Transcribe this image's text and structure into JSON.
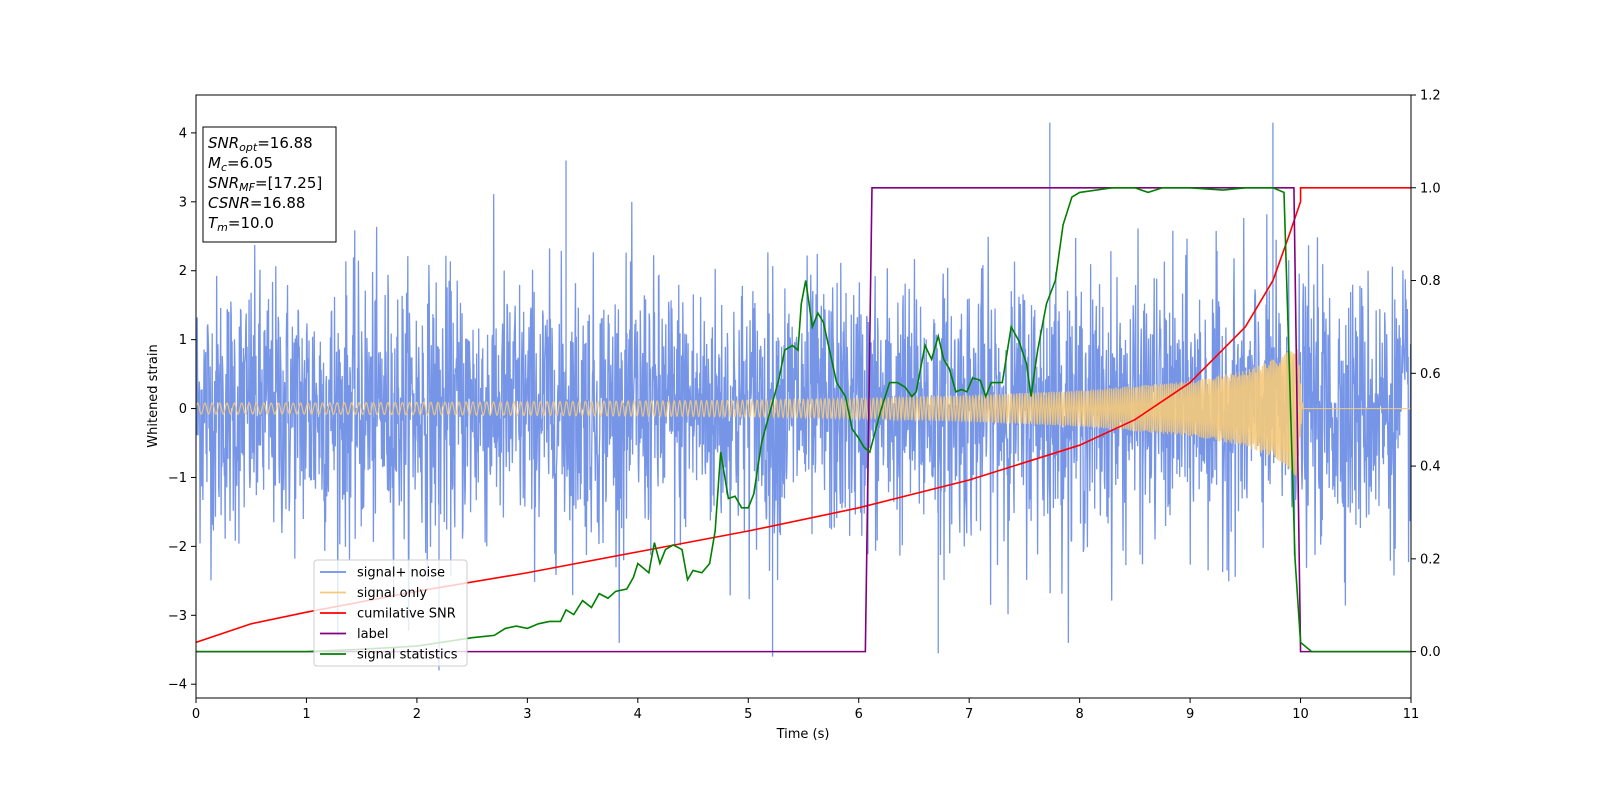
{
  "chart_data": {
    "type": "line",
    "xlabel": "Time (s)",
    "ylabel": "Whitened strain",
    "xlim": [
      0,
      11
    ],
    "ylim_left": [
      -4.2,
      4.55
    ],
    "ylim_right": [
      -0.1,
      1.2
    ],
    "x_ticks": [
      0,
      1,
      2,
      3,
      4,
      5,
      6,
      7,
      8,
      9,
      10,
      11
    ],
    "y_left_ticks": [
      -4,
      -3,
      -2,
      -1,
      0,
      1,
      2,
      3,
      4
    ],
    "y_right_ticks": [
      0.0,
      0.2,
      0.4,
      0.6,
      0.8,
      1.0,
      1.2
    ],
    "legend_position": "lower-left",
    "info_box": {
      "position": "upper-left",
      "lines": [
        {
          "base": "SNR",
          "sub": "opt",
          "rest": "=16.88"
        },
        {
          "base": "M",
          "sub": "c",
          "rest": "=6.05"
        },
        {
          "base": "SNR",
          "sub": "MF",
          "rest": "=[17.25]"
        },
        {
          "base": "CSNR",
          "sub": "",
          "rest": "=16.88"
        },
        {
          "base": "T",
          "sub": "m",
          "rest": "=10.0"
        }
      ]
    },
    "series": [
      {
        "name": "signal+ noise",
        "axis": "left",
        "color": "#6f8fe6",
        "description_points": {
          "noise_sigma": 1.0,
          "notable_peaks": [
            [
              2.2,
              -3.8
            ],
            [
              3.35,
              3.6
            ],
            [
              5.22,
              -3.6
            ],
            [
              7.73,
              4.15
            ],
            [
              9.75,
              4.15
            ],
            [
              6.72,
              -3.55
            ]
          ]
        }
      },
      {
        "name": "signal only",
        "axis": "left",
        "color": "#f5c97a",
        "envelope": {
          "t": [
            0,
            1,
            2,
            3,
            4,
            5,
            6,
            7,
            8,
            9,
            9.5,
            9.8,
            9.97,
            10.02,
            11
          ],
          "amp": [
            0.08,
            0.08,
            0.09,
            0.1,
            0.11,
            0.12,
            0.15,
            0.19,
            0.26,
            0.4,
            0.55,
            0.75,
            1.0,
            0,
            0
          ]
        }
      },
      {
        "name": "cumilative SNR",
        "axis": "right",
        "color": "#ff0000",
        "points": [
          [
            0,
            0.02
          ],
          [
            0.5,
            0.06
          ],
          [
            1,
            0.085
          ],
          [
            2,
            0.13
          ],
          [
            3,
            0.17
          ],
          [
            4,
            0.215
          ],
          [
            5,
            0.26
          ],
          [
            6,
            0.31
          ],
          [
            7,
            0.37
          ],
          [
            8,
            0.445
          ],
          [
            8.5,
            0.5
          ],
          [
            9,
            0.58
          ],
          [
            9.5,
            0.7
          ],
          [
            9.75,
            0.8
          ],
          [
            9.9,
            0.9
          ],
          [
            10.0,
            0.97
          ],
          [
            10.0,
            1.0
          ],
          [
            11,
            1.0
          ]
        ]
      },
      {
        "name": "label",
        "axis": "right",
        "color": "#800080",
        "points": [
          [
            0,
            0
          ],
          [
            6.06,
            0
          ],
          [
            6.12,
            1.0
          ],
          [
            9.94,
            1.0
          ],
          [
            10.0,
            0
          ],
          [
            11,
            0
          ]
        ]
      },
      {
        "name": "signal statistics",
        "axis": "right",
        "color": "#008000",
        "points": [
          [
            0,
            0.0
          ],
          [
            1,
            0.0
          ],
          [
            1.5,
            0.005
          ],
          [
            2.0,
            0.012
          ],
          [
            2.5,
            0.03
          ],
          [
            2.7,
            0.035
          ],
          [
            2.8,
            0.05
          ],
          [
            2.9,
            0.055
          ],
          [
            3.0,
            0.05
          ],
          [
            3.1,
            0.06
          ],
          [
            3.2,
            0.065
          ],
          [
            3.3,
            0.065
          ],
          [
            3.35,
            0.09
          ],
          [
            3.42,
            0.08
          ],
          [
            3.5,
            0.11
          ],
          [
            3.58,
            0.095
          ],
          [
            3.65,
            0.125
          ],
          [
            3.73,
            0.115
          ],
          [
            3.8,
            0.13
          ],
          [
            3.9,
            0.135
          ],
          [
            3.96,
            0.16
          ],
          [
            4.0,
            0.19
          ],
          [
            4.05,
            0.18
          ],
          [
            4.1,
            0.17
          ],
          [
            4.15,
            0.235
          ],
          [
            4.2,
            0.19
          ],
          [
            4.25,
            0.22
          ],
          [
            4.32,
            0.23
          ],
          [
            4.4,
            0.22
          ],
          [
            4.45,
            0.155
          ],
          [
            4.5,
            0.175
          ],
          [
            4.58,
            0.17
          ],
          [
            4.65,
            0.19
          ],
          [
            4.7,
            0.26
          ],
          [
            4.75,
            0.43
          ],
          [
            4.82,
            0.33
          ],
          [
            4.88,
            0.335
          ],
          [
            4.94,
            0.31
          ],
          [
            5.0,
            0.31
          ],
          [
            5.05,
            0.34
          ],
          [
            5.12,
            0.45
          ],
          [
            5.2,
            0.52
          ],
          [
            5.28,
            0.59
          ],
          [
            5.33,
            0.65
          ],
          [
            5.4,
            0.66
          ],
          [
            5.45,
            0.65
          ],
          [
            5.48,
            0.75
          ],
          [
            5.52,
            0.8
          ],
          [
            5.58,
            0.7
          ],
          [
            5.63,
            0.73
          ],
          [
            5.68,
            0.71
          ],
          [
            5.8,
            0.58
          ],
          [
            5.88,
            0.55
          ],
          [
            5.94,
            0.48
          ],
          [
            6.0,
            0.46
          ],
          [
            6.05,
            0.44
          ],
          [
            6.1,
            0.43
          ],
          [
            6.2,
            0.52
          ],
          [
            6.28,
            0.58
          ],
          [
            6.35,
            0.58
          ],
          [
            6.42,
            0.57
          ],
          [
            6.48,
            0.55
          ],
          [
            6.52,
            0.56
          ],
          [
            6.6,
            0.66
          ],
          [
            6.66,
            0.63
          ],
          [
            6.72,
            0.68
          ],
          [
            6.77,
            0.63
          ],
          [
            6.82,
            0.61
          ],
          [
            6.88,
            0.56
          ],
          [
            6.93,
            0.565
          ],
          [
            6.98,
            0.56
          ],
          [
            7.03,
            0.59
          ],
          [
            7.1,
            0.585
          ],
          [
            7.15,
            0.55
          ],
          [
            7.2,
            0.58
          ],
          [
            7.3,
            0.58
          ],
          [
            7.38,
            0.7
          ],
          [
            7.45,
            0.67
          ],
          [
            7.52,
            0.62
          ],
          [
            7.56,
            0.55
          ],
          [
            7.62,
            0.65
          ],
          [
            7.7,
            0.75
          ],
          [
            7.78,
            0.8
          ],
          [
            7.85,
            0.92
          ],
          [
            7.93,
            0.98
          ],
          [
            8.0,
            0.99
          ],
          [
            8.3,
            1.0
          ],
          [
            8.5,
            1.0
          ],
          [
            8.62,
            0.99
          ],
          [
            8.75,
            1.0
          ],
          [
            9.0,
            1.0
          ],
          [
            9.3,
            0.995
          ],
          [
            9.5,
            1.0
          ],
          [
            9.75,
            1.0
          ],
          [
            9.85,
            0.99
          ],
          [
            9.9,
            0.6
          ],
          [
            9.95,
            0.2
          ],
          [
            10.0,
            0.02
          ],
          [
            10.1,
            0.0
          ],
          [
            11,
            0.0
          ]
        ]
      }
    ]
  }
}
